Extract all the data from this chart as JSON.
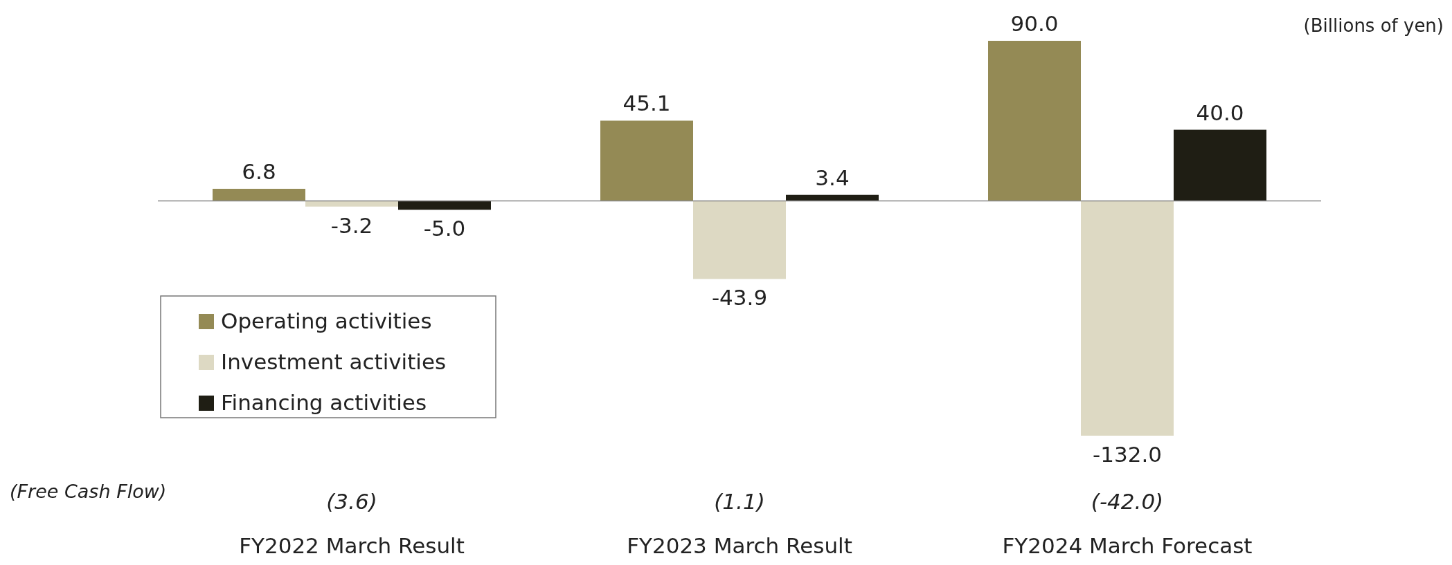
{
  "chart_data": {
    "type": "bar",
    "ylabel": "(Billions of yen)",
    "categories": [
      "FY2022 March Result",
      "FY2023 March Result",
      "FY2024 March Forecast"
    ],
    "series": [
      {
        "name": "Operating activities",
        "color": "#948a55",
        "values": [
          6.8,
          45.1,
          90
        ],
        "value_labels": [
          "6.8",
          "45.1",
          "90.0"
        ]
      },
      {
        "name": "Investment activities",
        "color": "#ddd9c3",
        "values": [
          -3.2,
          -43.9,
          -132
        ],
        "value_labels": [
          "-3.2",
          "-43.9",
          "-132.0"
        ]
      },
      {
        "name": "Financing activities",
        "color": "#1f1e14",
        "values": [
          -5,
          3.4,
          40
        ],
        "value_labels": [
          "-5.0",
          "3.4",
          "40.0"
        ]
      }
    ],
    "tick_labels": "x",
    "legend": "bottom left",
    "annotations": [
      "(Free Cash Flow)",
      "(3.6)",
      "(1.1)",
      "(-42.0)"
    ]
  }
}
